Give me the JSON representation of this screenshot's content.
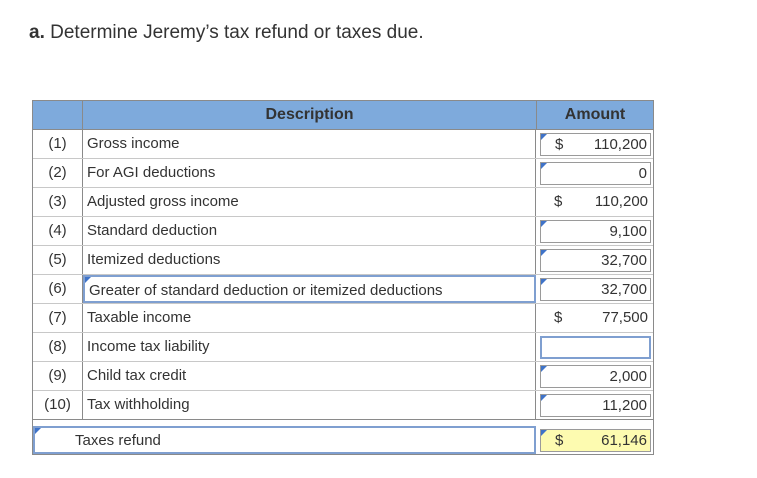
{
  "question": {
    "letter": "a.",
    "text": "Determine Jeremy’s tax refund or taxes due."
  },
  "table": {
    "headers": {
      "description": "Description",
      "amount": "Amount"
    },
    "rows": [
      {
        "num": "(1)",
        "desc": "Gross income",
        "currency": "$",
        "amount": "110,200"
      },
      {
        "num": "(2)",
        "desc": "For AGI deductions",
        "currency": "",
        "amount": "0"
      },
      {
        "num": "(3)",
        "desc": "Adjusted gross income",
        "currency": "$",
        "amount": "110,200"
      },
      {
        "num": "(4)",
        "desc": "Standard deduction",
        "currency": "",
        "amount": "9,100"
      },
      {
        "num": "(5)",
        "desc": "Itemized deductions",
        "currency": "",
        "amount": "32,700"
      },
      {
        "num": "(6)",
        "desc": "Greater of standard deduction or itemized deductions",
        "currency": "",
        "amount": "32,700"
      },
      {
        "num": "(7)",
        "desc": "Taxable income",
        "currency": "$",
        "amount": "77,500"
      },
      {
        "num": "(8)",
        "desc": "Income tax liability",
        "currency": "",
        "amount": ""
      },
      {
        "num": "(9)",
        "desc": "Child tax credit",
        "currency": "",
        "amount": "2,000"
      },
      {
        "num": "(10)",
        "desc": "Tax withholding",
        "currency": "",
        "amount": "11,200"
      }
    ],
    "total": {
      "desc": "Taxes refund",
      "currency": "$",
      "amount": "61,146"
    }
  },
  "colors": {
    "header_bg": "#7eaadc",
    "marker": "#3f73c8",
    "highlight": "#fdfbb0"
  }
}
